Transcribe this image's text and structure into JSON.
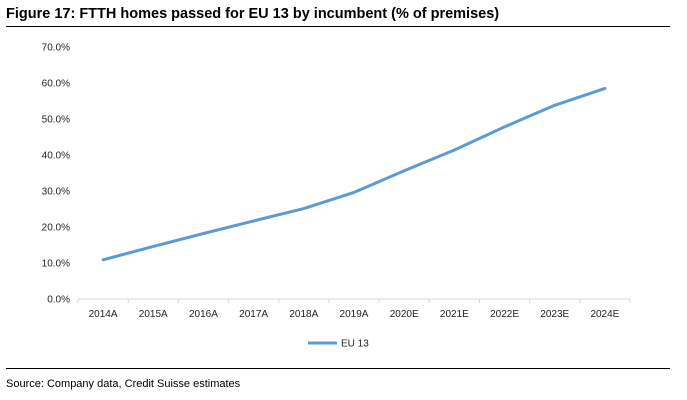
{
  "figure_title": "Figure 17: FTTH homes passed for EU 13 by incumbent (% of premises)",
  "source": "Source: Company data, Credit Suisse estimates",
  "chart_data": {
    "type": "line",
    "categories": [
      "2014A",
      "2015A",
      "2016A",
      "2017A",
      "2018A",
      "2019A",
      "2020E",
      "2021E",
      "2022E",
      "2023E",
      "2024E"
    ],
    "series": [
      {
        "name": "EU 13",
        "values": [
          10.9,
          14.6,
          18.2,
          21.7,
          25.1,
          29.6,
          35.6,
          41.4,
          47.8,
          53.8,
          58.5
        ],
        "color": "#5b9bd5"
      }
    ],
    "ylim": [
      0,
      70
    ],
    "yticks": [
      "0.0%",
      "10.0%",
      "20.0%",
      "30.0%",
      "40.0%",
      "50.0%",
      "60.0%",
      "70.0%"
    ],
    "grid": false,
    "legend": "bottom-center"
  }
}
